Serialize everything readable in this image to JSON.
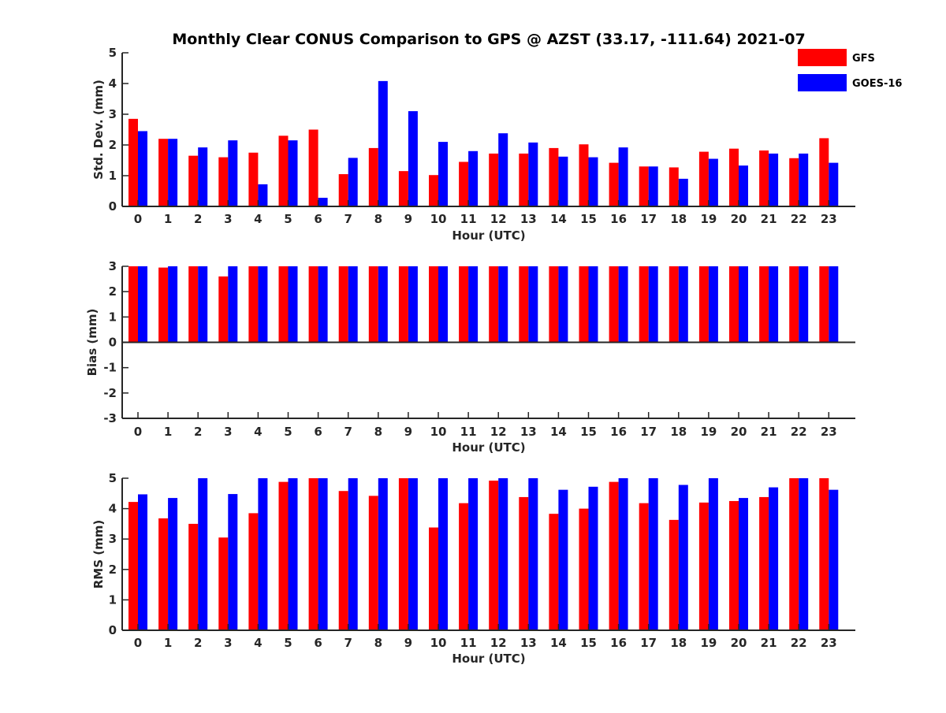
{
  "chart_data": [
    {
      "type": "bar",
      "title": "Monthly Clear CONUS Comparison to GPS @ AZST (33.17, -111.64) 2021-07",
      "xlabel": "Hour (UTC)",
      "ylabel": "Std. Dev. (mm)",
      "ylim": [
        0,
        5
      ],
      "yticks": [
        "0",
        "1",
        "2",
        "3",
        "4",
        "5"
      ],
      "categories": [
        "0",
        "1",
        "2",
        "3",
        "4",
        "5",
        "6",
        "7",
        "8",
        "9",
        "10",
        "11",
        "12",
        "13",
        "14",
        "15",
        "16",
        "17",
        "18",
        "19",
        "20",
        "21",
        "22",
        "23"
      ],
      "legend": {
        "placement": "top-right"
      },
      "series": [
        {
          "name": "GFS",
          "color": "#ff0000",
          "values": [
            2.85,
            2.2,
            1.65,
            1.6,
            1.75,
            2.3,
            2.5,
            1.05,
            1.9,
            1.15,
            1.02,
            1.45,
            1.72,
            1.72,
            1.9,
            2.02,
            1.42,
            1.3,
            1.27,
            1.78,
            1.88,
            1.82,
            1.57,
            2.22
          ]
        },
        {
          "name": "GOES-16",
          "color": "#0000ff",
          "values": [
            2.45,
            2.2,
            1.92,
            2.15,
            0.72,
            2.15,
            0.28,
            1.58,
            4.08,
            3.1,
            2.1,
            1.8,
            2.38,
            2.08,
            1.62,
            1.6,
            1.92,
            1.3,
            0.9,
            1.55,
            1.33,
            1.72,
            1.72,
            1.42
          ]
        }
      ]
    },
    {
      "type": "bar",
      "title": "",
      "xlabel": "Hour (UTC)",
      "ylabel": "Bias (mm)",
      "ylim": [
        -3,
        3
      ],
      "yticks": [
        "-3",
        "-2",
        "-1",
        "0",
        "1",
        "2",
        "3"
      ],
      "categories": [
        "0",
        "1",
        "2",
        "3",
        "4",
        "5",
        "6",
        "7",
        "8",
        "9",
        "10",
        "11",
        "12",
        "13",
        "14",
        "15",
        "16",
        "17",
        "18",
        "19",
        "20",
        "21",
        "22",
        "23"
      ],
      "series": [
        {
          "name": "GFS",
          "color": "#ff0000",
          "values": [
            3,
            2.95,
            3,
            2.6,
            3,
            3,
            3,
            3,
            3,
            3,
            3,
            3,
            3,
            3,
            3,
            3,
            3,
            3,
            3,
            3,
            3,
            3,
            3,
            3
          ]
        },
        {
          "name": "GOES-16",
          "color": "#0000ff",
          "values": [
            3,
            3,
            3,
            3,
            3,
            3,
            3,
            3,
            3,
            3,
            3,
            3,
            3,
            3,
            3,
            3,
            3,
            3,
            3,
            3,
            3,
            3,
            3,
            3
          ]
        }
      ]
    },
    {
      "type": "bar",
      "title": "",
      "xlabel": "Hour (UTC)",
      "ylabel": "RMS (mm)",
      "ylim": [
        0,
        5
      ],
      "yticks": [
        "0",
        "1",
        "2",
        "3",
        "4",
        "5"
      ],
      "categories": [
        "0",
        "1",
        "2",
        "3",
        "4",
        "5",
        "6",
        "7",
        "8",
        "9",
        "10",
        "11",
        "12",
        "13",
        "14",
        "15",
        "16",
        "17",
        "18",
        "19",
        "20",
        "21",
        "22",
        "23"
      ],
      "series": [
        {
          "name": "GFS",
          "color": "#ff0000",
          "values": [
            4.22,
            3.68,
            3.5,
            3.05,
            3.85,
            4.88,
            5,
            4.58,
            4.42,
            5,
            3.38,
            4.18,
            4.92,
            4.38,
            3.83,
            4.0,
            4.88,
            4.18,
            3.63,
            4.2,
            4.25,
            4.38,
            5,
            5
          ]
        },
        {
          "name": "GOES-16",
          "color": "#0000ff",
          "values": [
            4.47,
            4.35,
            5,
            4.48,
            5,
            5,
            5,
            5,
            5,
            5,
            5,
            5,
            5,
            5,
            4.62,
            4.72,
            5,
            5,
            4.78,
            5,
            4.35,
            4.7,
            5,
            4.62
          ]
        }
      ]
    }
  ]
}
